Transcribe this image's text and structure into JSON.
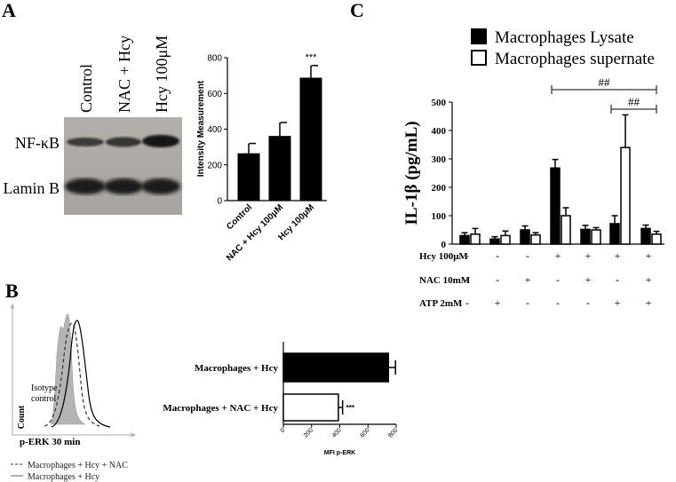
{
  "panels": {
    "a": "A",
    "b": "B",
    "c": "C"
  },
  "blot": {
    "lanes": [
      "Control",
      "NAC + Hcy",
      "Hcy 100μM"
    ],
    "rows": [
      "NF-κB",
      "Lamin B"
    ]
  },
  "flow": {
    "xlabel": "p-ERK 30 min",
    "ylabel": "Count",
    "isotype_label_1": "Isotype",
    "isotype_label_2": "control",
    "legend": [
      "Macrophages + Hcy + NAC",
      "Macrophages + Hcy"
    ]
  },
  "chart_data": [
    {
      "id": "A-bar",
      "type": "bar",
      "categories": [
        "Control",
        "NAC + Hcy 100μM",
        "Hcy 100μM"
      ],
      "values": [
        265,
        362,
        688
      ],
      "errors": [
        55,
        75,
        68
      ],
      "ylabel": "Intensity Measurement",
      "ylim": [
        0,
        800
      ],
      "yticks": [
        0,
        200,
        400,
        600,
        800
      ],
      "annotations": [
        {
          "category": "Hcy 100μM",
          "text": "***"
        }
      ],
      "color": "#000000"
    },
    {
      "id": "B-bar",
      "type": "bar",
      "orientation": "horizontal",
      "categories": [
        "Macrophages + Hcy",
        "Macrophages + NAC + Hcy"
      ],
      "values": [
        745,
        390
      ],
      "errors": [
        50,
        30
      ],
      "xlabel": "MFI p-ERK",
      "xlim": [
        0,
        800
      ],
      "xticks": [
        0,
        200,
        400,
        600,
        800
      ],
      "fills": [
        "#000000",
        "#ffffff"
      ],
      "annotations": [
        {
          "category": "Macrophages + NAC + Hcy",
          "text": "***"
        }
      ]
    },
    {
      "id": "C-bar",
      "type": "bar",
      "ylabel": "IL-1β (pg/mL)",
      "ylim": [
        0,
        500
      ],
      "yticks": [
        0,
        100,
        200,
        300,
        400,
        500
      ],
      "series": [
        {
          "name": "Macrophages Lysate",
          "fill": "#000000",
          "values": [
            30,
            18,
            50,
            268,
            52,
            72,
            55
          ],
          "errors": [
            10,
            8,
            14,
            30,
            14,
            28,
            12
          ]
        },
        {
          "name": "Macrophages supernate",
          "fill": "#ffffff",
          "values": [
            35,
            30,
            32,
            100,
            50,
            340,
            35
          ],
          "errors": [
            20,
            16,
            8,
            28,
            8,
            115,
            10
          ]
        }
      ],
      "conditions": [
        {
          "label": "Hcy 100μM",
          "signs": [
            "-",
            "-",
            "-",
            "+",
            "+",
            "+",
            "+"
          ]
        },
        {
          "label": "NAC 10mM",
          "signs": [
            "-",
            "-",
            "+",
            "-",
            "+",
            "-",
            "+"
          ]
        },
        {
          "label": "ATP 2mM",
          "signs": [
            "-",
            "+",
            "-",
            "-",
            "-",
            "+",
            "+"
          ]
        }
      ],
      "brackets": [
        {
          "from_group": 3,
          "to_group": 6,
          "text": "##"
        },
        {
          "from_group": 5,
          "to_group": 6,
          "text": "##"
        }
      ]
    }
  ]
}
